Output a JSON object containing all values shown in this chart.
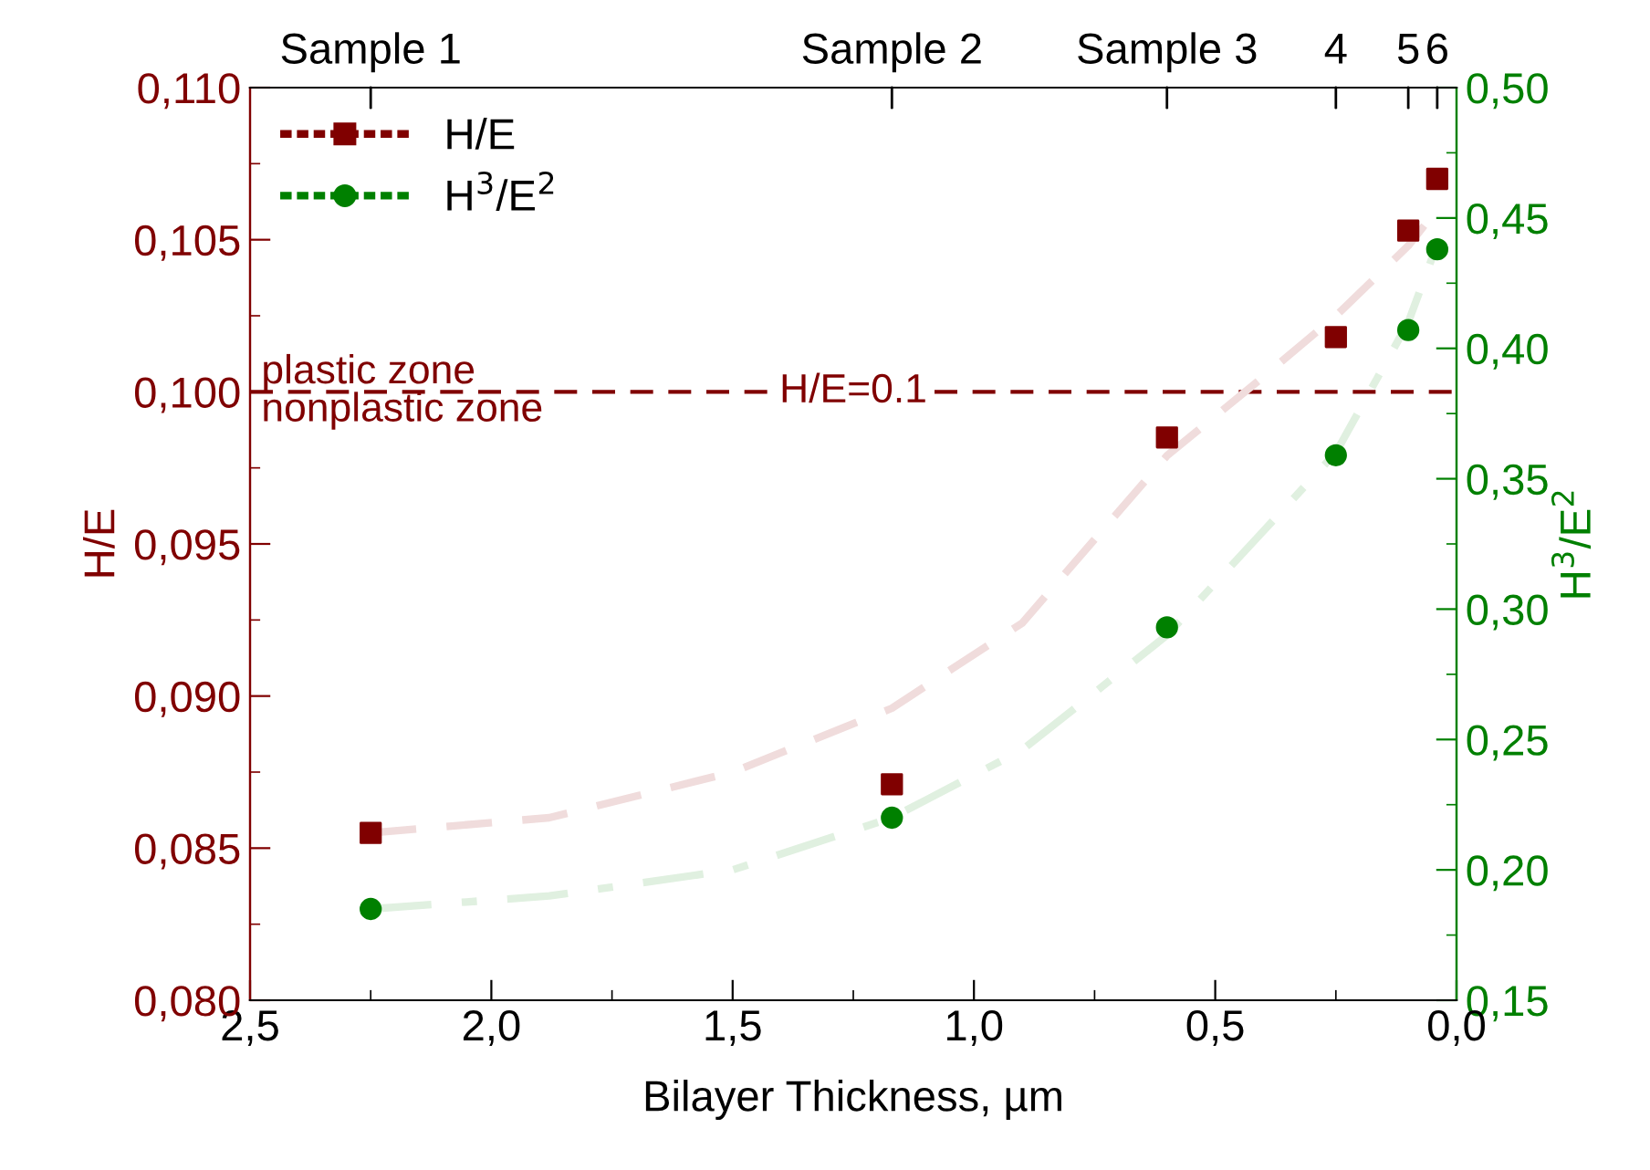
{
  "chart_data": {
    "type": "scatter",
    "xlabel": "Bilayer Thickness, µm",
    "ylabel": "H/E",
    "y2label": "H$^{3}$/E$^{2}$",
    "series": [
      {
        "name": "H/E",
        "color": "#800000",
        "marker": "square",
        "x": [
          2.25,
          1.17,
          0.6,
          0.25,
          0.1,
          0.04
        ],
        "values": [
          0.0855,
          0.0871,
          0.0985,
          0.1018,
          0.1053,
          0.107
        ]
      },
      {
        "name": "H$^{3}$/E$^{2}$",
        "axis": "y2",
        "color": "#008000",
        "marker": "circle",
        "x": [
          2.25,
          1.17,
          0.6,
          0.25,
          0.1,
          0.04
        ],
        "values": [
          0.185,
          0.22,
          0.293,
          0.359,
          0.407,
          0.438
        ]
      },
      {
        "type": "line",
        "color": "#f0dcdc",
        "line_style": "dashed",
        "x": [
          2.25,
          1.88,
          1.5,
          1.17,
          0.9,
          0.6,
          0.4,
          0.25,
          0.1,
          0.04
        ],
        "values": [
          0.0855,
          0.086,
          0.0875,
          0.0896,
          0.0924,
          0.0979,
          0.1005,
          0.1025,
          0.1048,
          0.106
        ]
      },
      {
        "type": "line",
        "axis": "y2",
        "color": "#e0f0e0",
        "line_style": "dashdot",
        "x": [
          2.25,
          1.88,
          1.5,
          1.17,
          0.9,
          0.6,
          0.4,
          0.25,
          0.1,
          0.04
        ],
        "values": [
          0.185,
          0.19,
          0.2,
          0.22,
          0.246,
          0.29,
          0.33,
          0.36,
          0.41,
          0.44
        ]
      }
    ],
    "xlim": [
      2.5,
      0.0
    ],
    "xticks": [
      {
        "value": 2.5,
        "label": "2,5"
      },
      {
        "value": 2.0,
        "label": "2,0"
      },
      {
        "value": 1.5,
        "label": "1,5"
      },
      {
        "value": 1.0,
        "label": "1,0"
      },
      {
        "value": 0.5,
        "label": "0,5"
      },
      {
        "value": 0.0,
        "label": "0,0"
      }
    ],
    "ylim": [
      0.08,
      0.11
    ],
    "yticks": [
      {
        "value": 0.08,
        "label": "0,080"
      },
      {
        "value": 0.085,
        "label": "0,085"
      },
      {
        "value": 0.09,
        "label": "0,090"
      },
      {
        "value": 0.095,
        "label": "0,095"
      },
      {
        "value": 0.1,
        "label": "0,100"
      },
      {
        "value": 0.105,
        "label": "0,105"
      },
      {
        "value": 0.11,
        "label": "0,110"
      }
    ],
    "y2lim": [
      0.15,
      0.5
    ],
    "y2ticks": [
      {
        "value": 0.15,
        "label": "0,15"
      },
      {
        "value": 0.2,
        "label": "0,20"
      },
      {
        "value": 0.25,
        "label": "0,25"
      },
      {
        "value": 0.3,
        "label": "0,30"
      },
      {
        "value": 0.35,
        "label": "0,35"
      },
      {
        "value": 0.4,
        "label": "0,40"
      },
      {
        "value": 0.45,
        "label": "0,45"
      },
      {
        "value": 0.5,
        "label": "0,50"
      }
    ],
    "ref_lines": [
      {
        "axis": "y",
        "value": 0.1,
        "label": "H/E=0.1",
        "color": "#800000",
        "line_style": "dashed"
      }
    ],
    "annotations": [
      {
        "text": "plastic zone",
        "x": 2.5,
        "y": 0.1
      },
      {
        "text": "nonplastic zone",
        "x": 2.5,
        "y": 0.1
      },
      {
        "text": "Sample 1",
        "x": 2.25
      },
      {
        "text": "Sample 2",
        "x": 1.17
      },
      {
        "text": "Sample 3",
        "x": 0.6
      },
      {
        "text": "4",
        "x": 0.25
      },
      {
        "text": "5",
        "x": 0.1
      },
      {
        "text": "6",
        "x": 0.04
      }
    ],
    "legend": "top left",
    "grid": false
  }
}
